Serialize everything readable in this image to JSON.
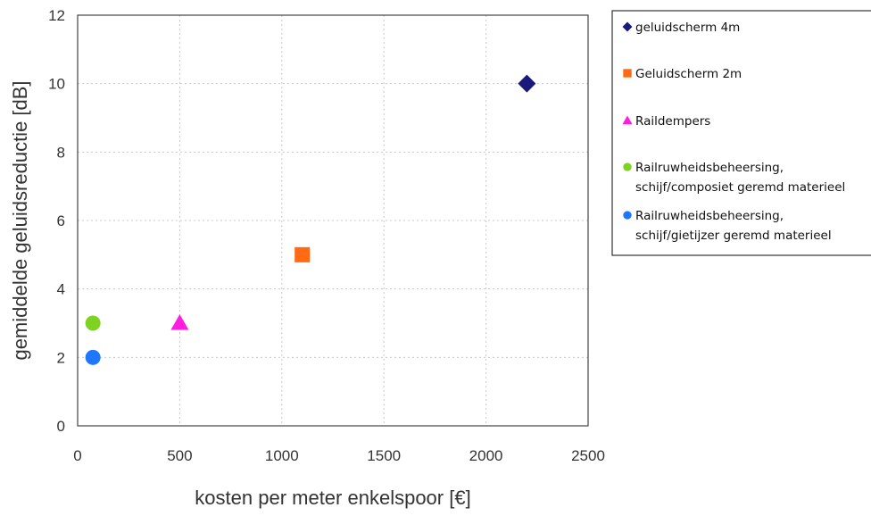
{
  "chart_data": {
    "type": "scatter",
    "title": "",
    "xlabel": "kosten per meter enkelspoor  [€]",
    "ylabel": "gemiddelde geluidsreductie [dB]",
    "xlim": [
      0,
      2500
    ],
    "ylim": [
      0,
      12
    ],
    "xticks": [
      "0",
      "500",
      "1000",
      "1500",
      "2000",
      "2500"
    ],
    "yticks": [
      "0",
      "2",
      "4",
      "6",
      "8",
      "10",
      "12"
    ],
    "grid": true,
    "legend_position": "right",
    "series": [
      {
        "name": "geluidscherm 4m",
        "marker": "diamond",
        "color": "#1a1a7a",
        "points": [
          {
            "x": 2200,
            "y": 10
          }
        ]
      },
      {
        "name": "Geluidscherm 2m",
        "marker": "square",
        "color": "#ff6a13",
        "points": [
          {
            "x": 1100,
            "y": 5
          }
        ]
      },
      {
        "name": "Raildempers",
        "marker": "triangle",
        "color": "#ff1ee0",
        "points": [
          {
            "x": 500,
            "y": 3
          }
        ]
      },
      {
        "name": "Railruwheidsbeheersing, schijf/composiet geremd materieel",
        "legend_lines": [
          "Railruwheidsbeheersing,",
          "schijf/composiet geremd materieel"
        ],
        "marker": "circle",
        "color": "#7ed321",
        "points": [
          {
            "x": 75,
            "y": 3
          }
        ]
      },
      {
        "name": "Railruwheidsbeheersing, schijf/gietijzer geremd materieel",
        "legend_lines": [
          "Railruwheidsbeheersing,",
          "schijf/gietijzer geremd materieel"
        ],
        "marker": "circle",
        "color": "#1e78ff",
        "points": [
          {
            "x": 75,
            "y": 2
          }
        ]
      }
    ]
  }
}
